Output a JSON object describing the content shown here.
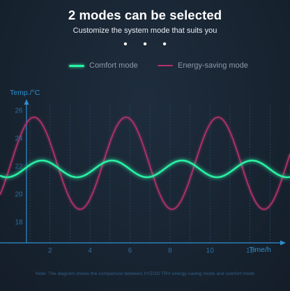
{
  "header": {
    "title": "2 modes can be selected",
    "subtitle": "Customize the system mode that suits you",
    "dots": "• • •"
  },
  "legend": {
    "comfort_label": "Comfort mode",
    "energy_label": "Energy-saving mode"
  },
  "colors": {
    "comfort": "#2bf0a4",
    "energy": "#b5306a",
    "axis": "#2f8fd0"
  },
  "footnote": "Note: The diagram shows the comparison between XYZOO TRV energy-saving mode and comfort mode",
  "chart_data": {
    "type": "line",
    "xlabel": "Time/h",
    "ylabel": "Temp./°C",
    "xlim": [
      -0.5,
      14
    ],
    "ylim": [
      16.5,
      26.5
    ],
    "xticks": [
      2,
      4,
      6,
      8,
      10,
      12
    ],
    "yticks": [
      18,
      20,
      22,
      24,
      26
    ],
    "grid": "vertical",
    "series": [
      {
        "name": "Comfort mode",
        "shape": "sine",
        "mean": 21.8,
        "amplitude": 0.6,
        "period_h": 3.5,
        "peak_at_h": 1.6
      },
      {
        "name": "Energy-saving mode",
        "shape": "sine",
        "mean": 22.2,
        "amplitude": 3.3,
        "period_h": 4.6,
        "peak_at_h": 1.2
      }
    ]
  }
}
